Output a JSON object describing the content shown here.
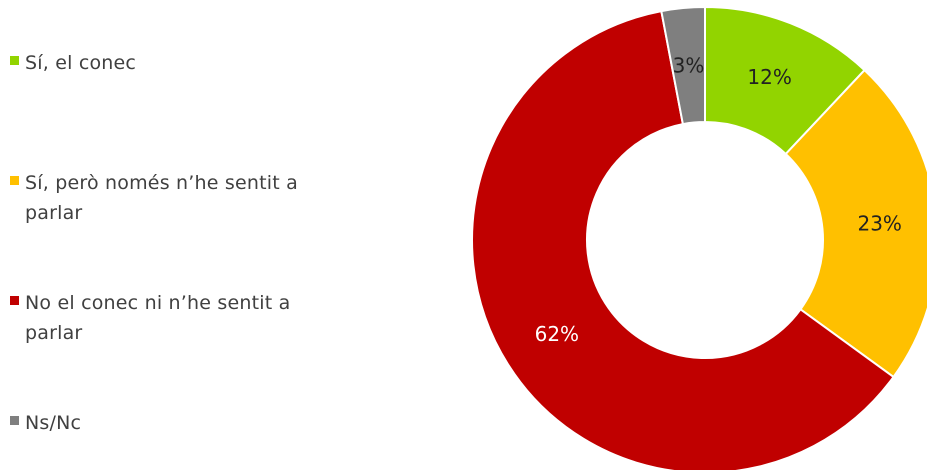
{
  "chart_data": {
    "type": "pie",
    "donut": true,
    "title": "",
    "legend_position": "left",
    "categories": [
      "Sí, el conec",
      "Sí, però només n'he sentit a parlar",
      "No el conec ni n'he sentit a parlar",
      "Ns/Nc"
    ],
    "values": [
      12,
      23,
      62,
      3
    ],
    "labels": [
      "12%",
      "23%",
      "62%",
      "3%"
    ],
    "colors": [
      "#92D400",
      "#FFC000",
      "#C00000",
      "#7F7F7F"
    ],
    "label_colors": [
      "#222222",
      "#222222",
      "#ffffff",
      "#222222"
    ]
  },
  "legend": {
    "items": [
      {
        "label": "Sí, el conec",
        "color": "#92D400"
      },
      {
        "label": "Sí, però només n’he sentit a parlar",
        "color": "#FFC000"
      },
      {
        "label": "No el conec ni n’he sentit a parlar",
        "color": "#C00000"
      },
      {
        "label": "Ns/Nc",
        "color": "#7F7F7F"
      }
    ]
  }
}
